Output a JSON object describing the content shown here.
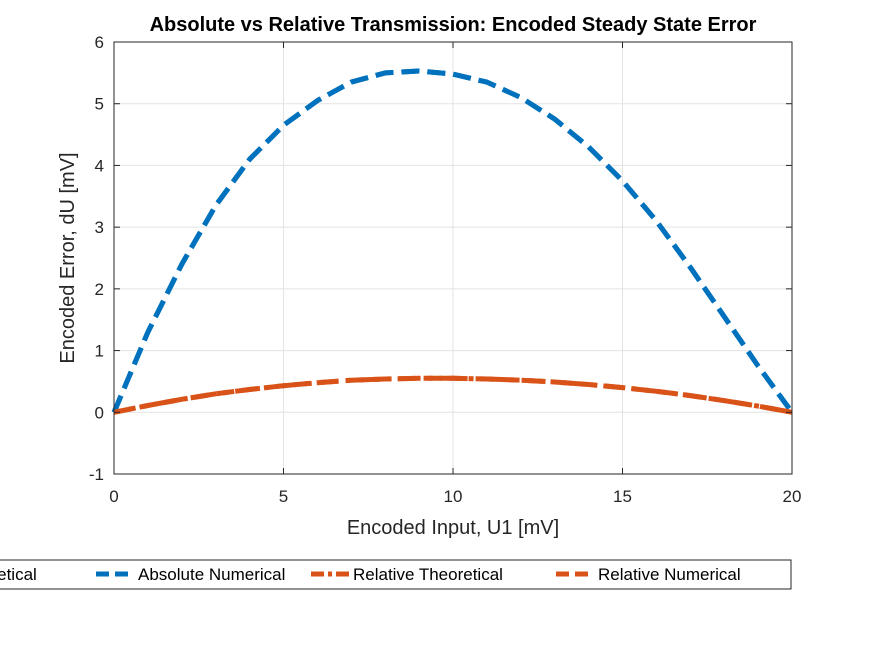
{
  "chart_data": {
    "type": "line",
    "title": "Absolute vs Relative Transmission: Encoded Steady State Error",
    "xlabel": "Encoded Input, U1 [mV]",
    "ylabel": "Encoded Error, dU [mV]",
    "xlim": [
      0,
      20
    ],
    "ylim": [
      -1,
      6
    ],
    "xticks": [
      0,
      5,
      10,
      15,
      20
    ],
    "yticks": [
      -1,
      0,
      1,
      2,
      3,
      4,
      5,
      6
    ],
    "xtick_labels": [
      "0",
      "5",
      "10",
      "15",
      "20"
    ],
    "ytick_labels": [
      "-1",
      "0",
      "1",
      "2",
      "3",
      "4",
      "5",
      "6"
    ],
    "grid": true,
    "legend_position": "bottom, partially clipped on left",
    "x": [
      0,
      1,
      2,
      3,
      4,
      5,
      6,
      7,
      8,
      9,
      10,
      11,
      12,
      13,
      14,
      15,
      16,
      17,
      18,
      19,
      20
    ],
    "series": [
      {
        "name": "Absolute Theoretical",
        "legend_label": "oretical",
        "color": "#0072BD",
        "style": "dashed",
        "values": [
          0,
          1.3,
          2.4,
          3.35,
          4.1,
          4.65,
          5.05,
          5.35,
          5.5,
          5.53,
          5.48,
          5.35,
          5.1,
          4.75,
          4.3,
          3.75,
          3.1,
          2.35,
          1.55,
          0.75,
          0
        ]
      },
      {
        "name": "Absolute Numerical",
        "legend_label": "Absolute Numerical",
        "color": "#0072BD",
        "style": "dashed",
        "values": [
          0,
          1.3,
          2.4,
          3.35,
          4.1,
          4.65,
          5.05,
          5.35,
          5.5,
          5.53,
          5.48,
          5.35,
          5.1,
          4.75,
          4.3,
          3.75,
          3.1,
          2.35,
          1.55,
          0.75,
          0
        ]
      },
      {
        "name": "Relative Theoretical",
        "legend_label": "Relative Theoretical",
        "color": "#D95319",
        "style": "dashdot",
        "values": [
          0,
          0.11,
          0.21,
          0.3,
          0.37,
          0.43,
          0.48,
          0.52,
          0.54,
          0.55,
          0.55,
          0.54,
          0.52,
          0.49,
          0.45,
          0.4,
          0.34,
          0.27,
          0.19,
          0.1,
          0
        ]
      },
      {
        "name": "Relative Numerical",
        "legend_label": "Relative Numerical",
        "color": "#D95319",
        "style": "dashed",
        "values": [
          0,
          0.11,
          0.21,
          0.3,
          0.37,
          0.43,
          0.48,
          0.52,
          0.54,
          0.55,
          0.55,
          0.54,
          0.52,
          0.49,
          0.45,
          0.4,
          0.34,
          0.27,
          0.19,
          0.1,
          0
        ]
      }
    ]
  }
}
